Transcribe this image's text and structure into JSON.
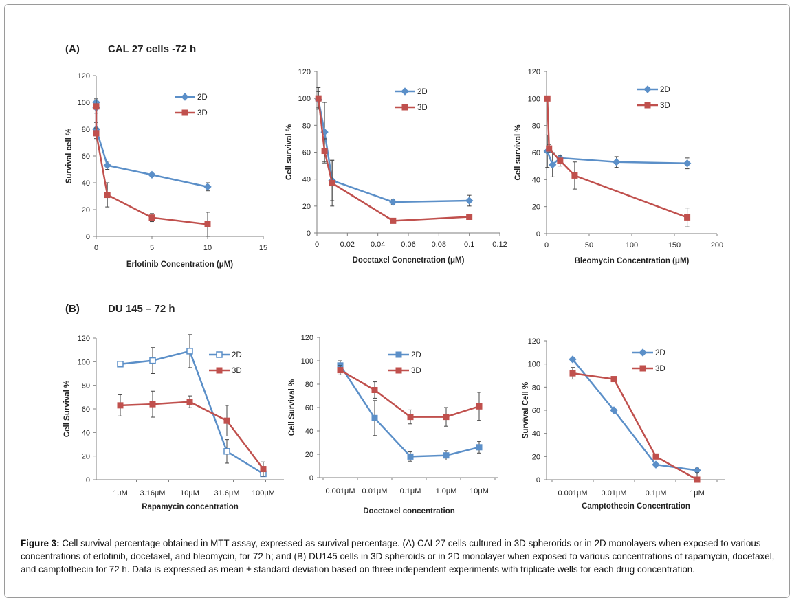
{
  "panels": {
    "a": {
      "letter": "(A)",
      "title": "CAL 27 cells -72 h"
    },
    "b": {
      "letter": "(B)",
      "title": "DU 145 – 72 h"
    }
  },
  "caption": {
    "label": "Figure 3:",
    "text": "Cell survival percentage obtained in MTT assay, expressed as survival percentage. (A) CAL27 cells cultured in 3D spherorids or in 2D monolayers when exposed to various concentrations of erlotinib, docetaxel, and bleomycin, for 72 h; and (B) DU145 cells in 3D spheroids or in 2D monolayer when exposed to various concentrations of rapamycin, docetaxel, and camptothecin for 72 h. Data is expressed as mean ± standard deviation based on three independent experiments with triplicate wells for each drug concentration."
  },
  "colors": {
    "blue": "#5b8fc8",
    "red": "#c0504d",
    "axis": "#7f7f7f",
    "text": "#222222"
  },
  "chart_data": [
    {
      "type": "line",
      "id": "a1",
      "xlabel": "Erlotinib Concentration (μM)",
      "ylabel": "Survival cell %",
      "xlim": [
        0,
        15
      ],
      "ylim": [
        0,
        120
      ],
      "xticks": [
        0,
        5,
        10,
        15
      ],
      "yticks": [
        0,
        20,
        40,
        60,
        80,
        100,
        120
      ],
      "xticklabels": [
        "0",
        "5",
        "10",
        "15"
      ],
      "legend": [
        "2D",
        "3D"
      ],
      "series": [
        {
          "name": "2D",
          "marker": "diamond",
          "x": [
            0,
            0,
            0,
            1,
            5,
            10
          ],
          "y": [
            100,
            96,
            80,
            53,
            46,
            37
          ],
          "err": [
            3,
            4,
            5,
            3,
            1,
            3
          ]
        },
        {
          "name": "3D",
          "marker": "square",
          "x": [
            0,
            0,
            1,
            5,
            10
          ],
          "y": [
            97,
            77,
            31,
            14,
            9
          ],
          "err": [
            5,
            4,
            9,
            3,
            9
          ]
        }
      ]
    },
    {
      "type": "line",
      "id": "a2",
      "xlabel": "Docetaxel Concnetration (μM)",
      "ylabel": "Cell survival %",
      "xlim": [
        0,
        0.12
      ],
      "ylim": [
        0,
        120
      ],
      "xticks": [
        0,
        0.02,
        0.04,
        0.06,
        0.08,
        0.1,
        0.12
      ],
      "yticks": [
        0,
        20,
        40,
        60,
        80,
        100,
        120
      ],
      "xticklabels": [
        "0",
        "0.02",
        "0.04",
        "0.06",
        "0.08",
        "0.1",
        "0.12"
      ],
      "legend": [
        "2D",
        "3D"
      ],
      "series": [
        {
          "name": "2D",
          "marker": "diamond",
          "x": [
            0.001,
            0.005,
            0.01,
            0.05,
            0.1
          ],
          "y": [
            99,
            75,
            39,
            23,
            24
          ],
          "err": [
            6,
            22,
            15,
            2,
            4
          ]
        },
        {
          "name": "3D",
          "marker": "square",
          "x": [
            0.001,
            0.005,
            0.01,
            0.05,
            0.1
          ],
          "y": [
            100,
            61,
            37,
            9,
            12
          ],
          "err": [
            8,
            9,
            17,
            1,
            2
          ]
        }
      ]
    },
    {
      "type": "line",
      "id": "a3",
      "xlabel": "Bleomycin Concentration (μM)",
      "ylabel": "Cell survival %",
      "xlim": [
        0,
        200
      ],
      "ylim": [
        0,
        120
      ],
      "xticks": [
        0,
        50,
        100,
        150,
        200
      ],
      "yticks": [
        0,
        20,
        40,
        60,
        80,
        100,
        120
      ],
      "xticklabels": [
        "0",
        "50",
        "100",
        "150",
        "200"
      ],
      "legend": [
        "2D",
        "3D"
      ],
      "series": [
        {
          "name": "2D",
          "marker": "diamond",
          "x": [
            1,
            7,
            16,
            82,
            165
          ],
          "y": [
            61,
            51,
            56,
            53,
            52
          ],
          "err": [
            12,
            9,
            2,
            4,
            4
          ]
        },
        {
          "name": "3D",
          "marker": "square",
          "x": [
            1,
            3,
            16,
            33,
            165
          ],
          "y": [
            100,
            63,
            54,
            43,
            12
          ],
          "err": [
            0,
            3,
            4,
            10,
            7
          ]
        }
      ]
    },
    {
      "type": "line",
      "id": "b1",
      "categorical": true,
      "xlabel": "Rapamycin concentration",
      "ylabel": "Cell Survival %",
      "categories": [
        "1μM",
        "3.16μM",
        "10μM",
        "31.6μM",
        "100μM"
      ],
      "ylim": [
        0,
        120
      ],
      "yticks": [
        0,
        20,
        40,
        60,
        80,
        100,
        120
      ],
      "legend": [
        "2D",
        "3D"
      ],
      "series": [
        {
          "name": "2D",
          "marker": "open-square",
          "values": [
            98,
            101,
            109,
            24,
            5
          ],
          "err": [
            0,
            11,
            14,
            10,
            1
          ]
        },
        {
          "name": "3D",
          "marker": "square",
          "values": [
            63,
            64,
            66,
            50,
            9
          ],
          "err": [
            9,
            11,
            5,
            13,
            6
          ]
        }
      ]
    },
    {
      "type": "line",
      "id": "b2",
      "categorical": true,
      "xlabel": "Docetaxel concentration",
      "ylabel": "Cell  Survival %",
      "categories": [
        "0.001μM",
        "0.01μM",
        "0.1μM",
        "1.0μM",
        "10μM"
      ],
      "ylim": [
        0,
        120
      ],
      "yticks": [
        0,
        20,
        40,
        60,
        80,
        100,
        120
      ],
      "legend": [
        "2D",
        "3D"
      ],
      "series": [
        {
          "name": "2D",
          "marker": "square",
          "values": [
            96,
            51,
            18,
            19,
            26
          ],
          "err": [
            4,
            15,
            4,
            4,
            5
          ]
        },
        {
          "name": "3D",
          "marker": "square",
          "values": [
            92,
            75,
            52,
            52,
            61
          ],
          "err": [
            4,
            7,
            6,
            8,
            12
          ]
        }
      ]
    },
    {
      "type": "line",
      "id": "b3",
      "categorical": true,
      "xlabel": "Camptothecin Concentration",
      "ylabel": "Survival Cell %",
      "categories": [
        "0.001μM",
        "0.01μM",
        "0.1μM",
        "1μM"
      ],
      "ylim": [
        0,
        120
      ],
      "yticks": [
        0,
        20,
        40,
        60,
        80,
        100,
        120
      ],
      "legend": [
        "2D",
        "3D"
      ],
      "series": [
        {
          "name": "2D",
          "marker": "diamond",
          "values": [
            104,
            60,
            13,
            8
          ],
          "err": [
            0,
            0,
            1,
            2
          ]
        },
        {
          "name": "3D",
          "marker": "square",
          "values": [
            92,
            87,
            20,
            0
          ],
          "err": [
            5,
            1,
            2,
            6
          ]
        }
      ]
    }
  ]
}
